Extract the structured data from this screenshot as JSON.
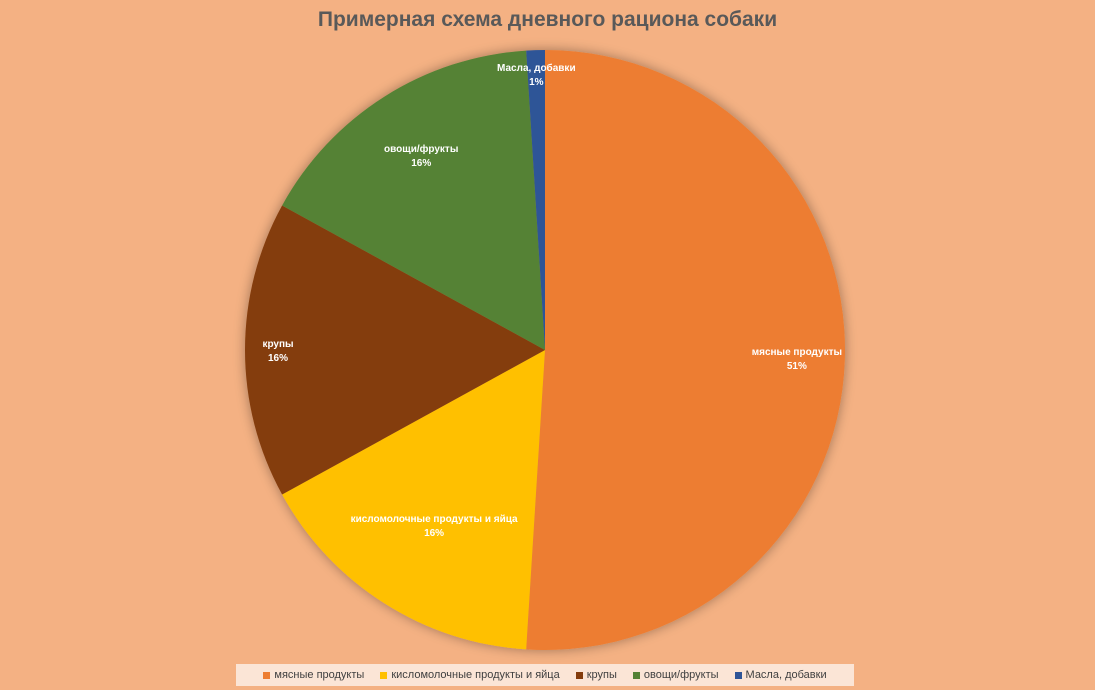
{
  "chart_data": {
    "type": "pie",
    "title": "Примерная схема дневного рациона собаки",
    "legend_position": "bottom",
    "slices": [
      {
        "name": "мясные продукты",
        "value": 51,
        "label": "51%",
        "color": "#ED7D31"
      },
      {
        "name": "кисломолочные продукты и яйца",
        "value": 16,
        "label": "16%",
        "color": "#FFC000"
      },
      {
        "name": "крупы",
        "value": 16,
        "label": "16%",
        "color": "#843C0C"
      },
      {
        "name": "овощи/фрукты",
        "value": 16,
        "label": "16%",
        "color": "#548235"
      },
      {
        "name": "Масла, добавки",
        "value": 1,
        "label": "1%",
        "color": "#2F5597"
      }
    ]
  }
}
